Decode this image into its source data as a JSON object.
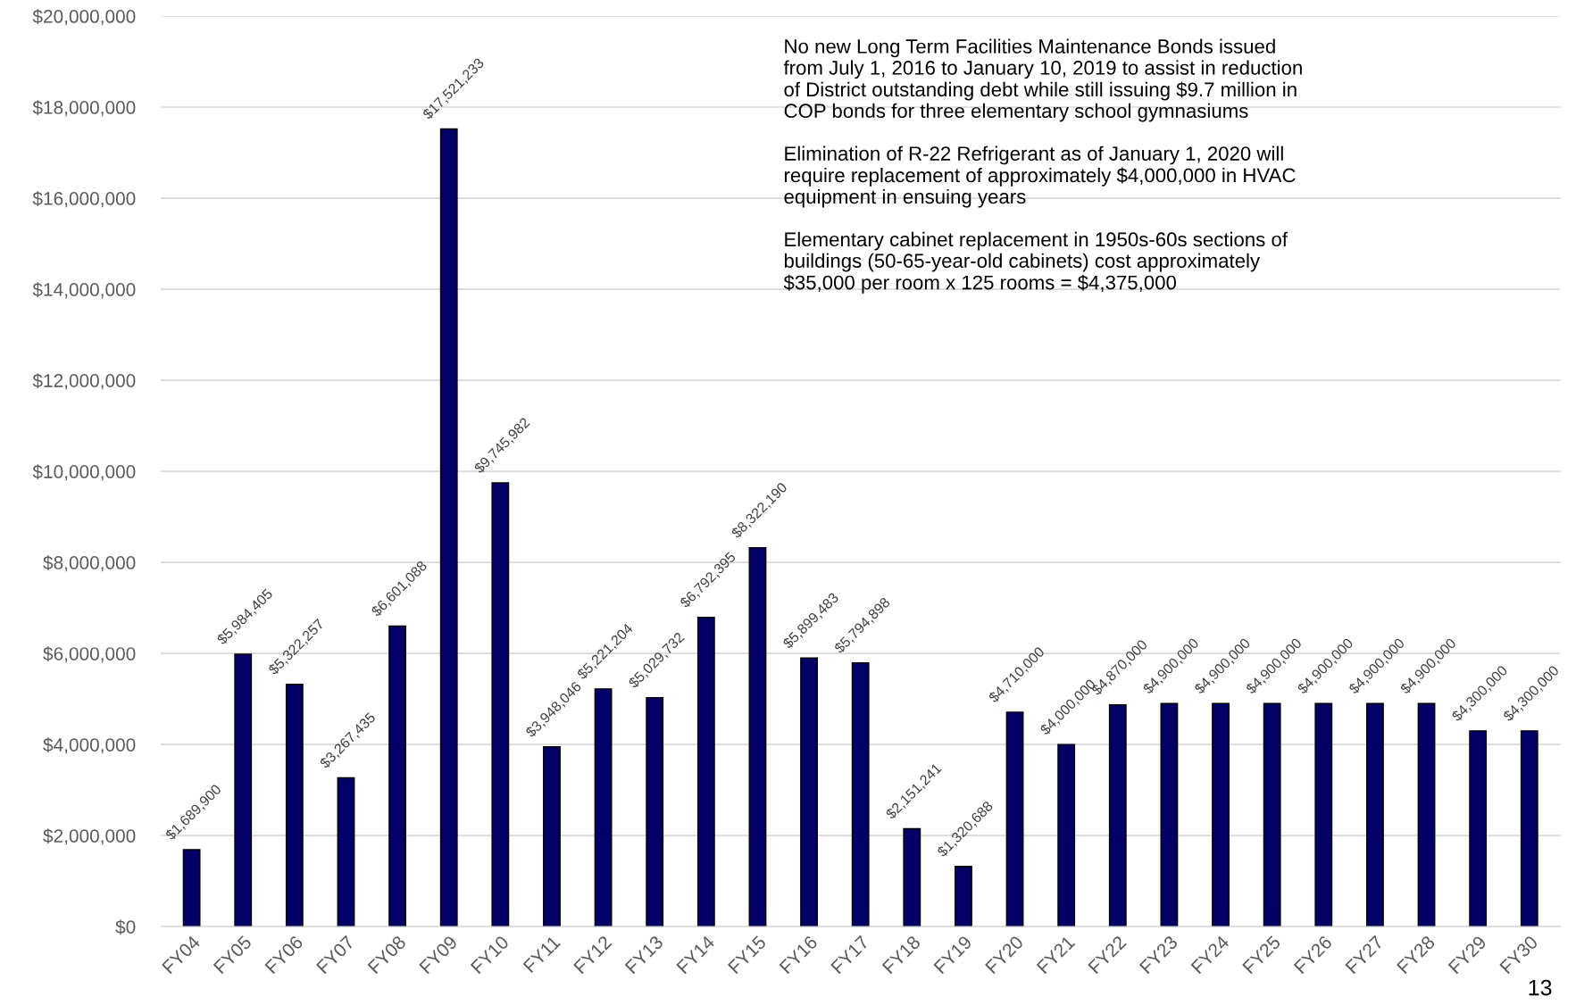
{
  "chart_data": {
    "type": "bar",
    "categories": [
      "FY04",
      "FY05",
      "FY06",
      "FY07",
      "FY08",
      "FY09",
      "FY10",
      "FY11",
      "FY12",
      "FY13",
      "FY14",
      "FY15",
      "FY16",
      "FY17",
      "FY18",
      "FY19",
      "FY20",
      "FY21",
      "FY22",
      "FY23",
      "FY24",
      "FY25",
      "FY26",
      "FY27",
      "FY28",
      "FY29",
      "FY30"
    ],
    "values": [
      1689900,
      5984405,
      5322257,
      3267435,
      6601088,
      17521233,
      9745982,
      3948046,
      5221204,
      5029732,
      6792395,
      8322190,
      5899483,
      5794898,
      2151241,
      1320688,
      4710000,
      4000000,
      4870000,
      4900000,
      4900000,
      4900000,
      4900000,
      4900000,
      4900000,
      4300000,
      4300000
    ],
    "value_labels": [
      "$1,689,900",
      "$5,984,405",
      "$5,322,257",
      "$3,267,435",
      "$6,601,088",
      "$17,521,233",
      "$9,745,982",
      "$3,948,046",
      "$5,221,204",
      "$5,029,732",
      "$6,792,395",
      "$8,322,190",
      "$5,899,483",
      "$5,794,898",
      "$2,151,241",
      "$1,320,688",
      "$4,710,000",
      "$4,000,000",
      "$4,870,000",
      "$4,900,000",
      "$4,900,000",
      "$4,900,000",
      "$4,900,000",
      "$4,900,000",
      "$4,900,000",
      "$4,300,000",
      "$4,300,000"
    ],
    "color": "#000066",
    "ylim": [
      0,
      20000000
    ],
    "yticks": [
      {
        "value": 0,
        "label": "$0"
      },
      {
        "value": 2000000,
        "label": "$2,000,000"
      },
      {
        "value": 4000000,
        "label": "$4,000,000"
      },
      {
        "value": 6000000,
        "label": "$6,000,000"
      },
      {
        "value": 8000000,
        "label": "$8,000,000"
      },
      {
        "value": 10000000,
        "label": "$10,000,000"
      },
      {
        "value": 12000000,
        "label": "$12,000,000"
      },
      {
        "value": 14000000,
        "label": "$14,000,000"
      },
      {
        "value": 16000000,
        "label": "$16,000,000"
      },
      {
        "value": 18000000,
        "label": "$18,000,000"
      },
      {
        "value": 20000000,
        "label": "$20,000,000"
      }
    ],
    "grid": "y",
    "annotations": [
      "No new Long Term Facilities Maintenance Bonds issued\nfrom July 1, 2016 to January 10, 2019 to assist in reduction\nof District outstanding debt while still issuing $9.7 million in\nCOP bonds for three elementary school gymnasiums",
      "Elimination of R-22 Refrigerant as of January 1, 2020 will\nrequire replacement of approximately $4,000,000 in HVAC\nequipment in ensuing years",
      "Elementary cabinet replacement in 1950s-60s sections of\nbuildings (50-65-year-old cabinets) cost approximately\n$35,000 per room x 125 rooms = $4,375,000",
      "13"
    ]
  }
}
